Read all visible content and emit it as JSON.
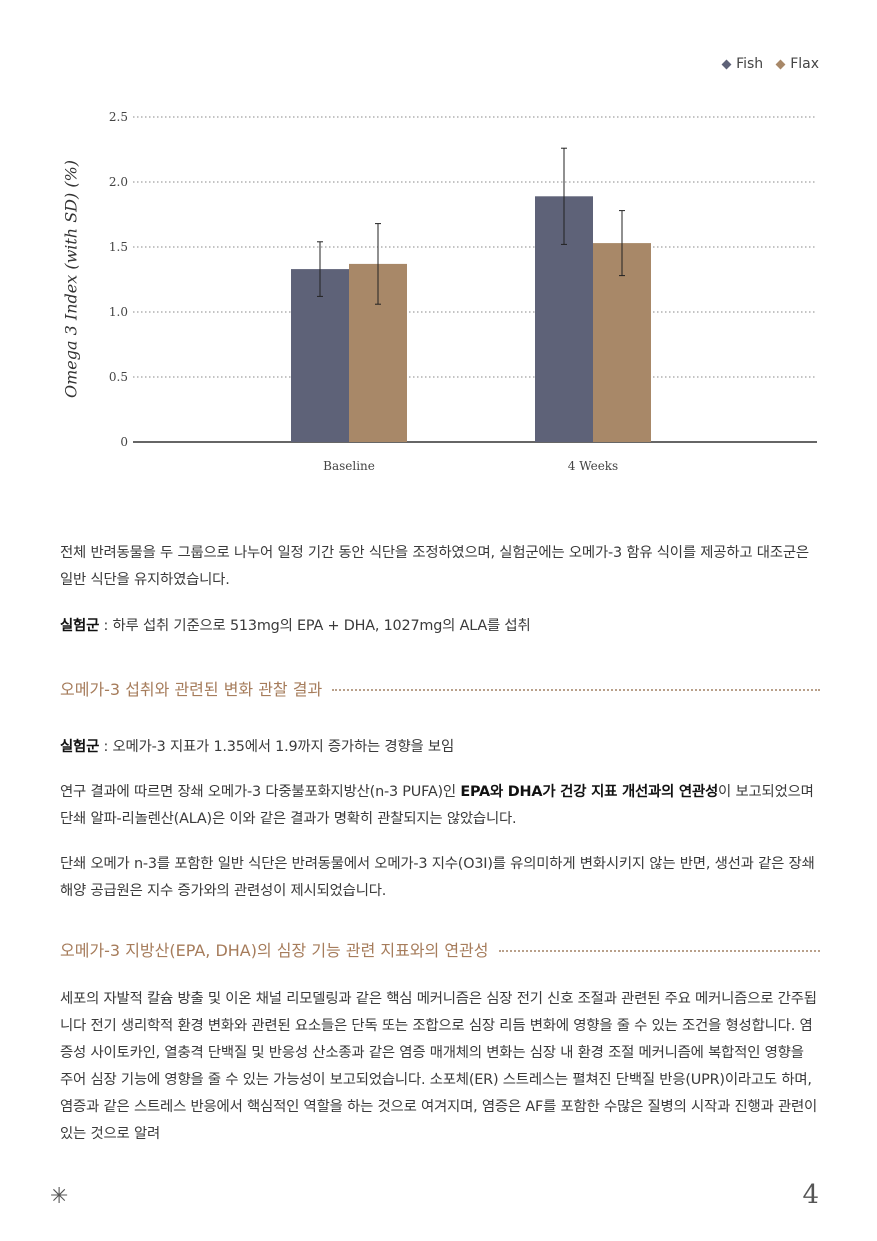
{
  "legend": [
    {
      "label": "Fish",
      "color": "#5e6278"
    },
    {
      "label": "Flax",
      "color": "#a88868"
    }
  ],
  "chart_data": {
    "type": "bar",
    "ylabel": "Omega 3 Index (with SD) (%)",
    "xlabel": "",
    "categories": [
      "Baseline",
      "4 Weeks"
    ],
    "series": [
      {
        "name": "Fish",
        "color": "#5e6278",
        "values": [
          1.33,
          1.89
        ],
        "sd": [
          0.21,
          0.37
        ]
      },
      {
        "name": "Flax",
        "color": "#a88868",
        "values": [
          1.37,
          1.53
        ],
        "sd": [
          0.31,
          0.25
        ]
      }
    ],
    "ylim": [
      0,
      2.5
    ],
    "yticks": [
      "0",
      "0.5",
      "1.0",
      "1.5",
      "2.0",
      "2.5"
    ],
    "grid": true,
    "legend_position": "top-right"
  },
  "para1": "전체 반려동물을 두 그룹으로 나누어 일정 기간 동안 식단을 조정하였으며, 실험군에는 오메가-3 함유 식이를 제공하고 대조군은 일반 식단을 유지하였습니다.",
  "para2": {
    "label": "실험군",
    "text": " : 하루 섭취 기준으로 513mg의 EPA + DHA, 1027mg의 ALA를 섭취"
  },
  "heading1": "오메가-3 섭취와 관련된 변화 관찰 결과",
  "para3": {
    "label": "실험군",
    "text": " : 오메가-3 지표가 1.35에서 1.9까지 증가하는 경향을 보임"
  },
  "para4": {
    "pre": "연구 결과에 따르면 장쇄 오메가-3 다중불포화지방산(n-3 PUFA)인 ",
    "bold": "EPA와 DHA가 건강 지표 개선과의 연관성",
    "post": "이 보고되었으며 단쇄 알파-리놀렌산(ALA)은 이와 같은 결과가 명확히 관찰되지는 않았습니다."
  },
  "para5": "단쇄 오메가 n-3를 포함한 일반 식단은 반려동물에서 오메가-3 지수(O3I)를 유의미하게 변화시키지 않는 반면, 생선과 같은 장쇄 해양 공급원은 지수 증가와의 관련성이 제시되었습니다.",
  "heading2": "오메가-3 지방산(EPA, DHA)의 심장 기능 관련 지표와의 연관성",
  "para6": "세포의 자발적 칼슘 방출 및 이온 채널 리모델링과 같은 핵심 메커니즘은 심장 전기 신호 조절과 관련된 주요 메커니즘으로 간주됩니다 전기 생리학적 환경 변화와 관련된 요소들은 단독 또는 조합으로 심장 리듬 변화에 영향을 줄 수 있는 조건을 형성합니다. 염증성 사이토카인, 열충격 단백질 및 반응성 산소종과 같은 염증 매개체의 변화는 심장 내 환경 조절 메커니즘에 복합적인 영향을 주어 심장 기능에 영향을 줄 수 있는 가능성이 보고되었습니다. 소포체(ER) 스트레스는 펼쳐진 단백질 반응(UPR)이라고도 하며, 염증과 같은 스트레스 반응에서 핵심적인 역할을 하는 것으로 여겨지며, 염증은 AF를 포함한 수많은 질병의 시작과 진행과 관련이 있는 것으로 알려",
  "footer": {
    "star": "✳",
    "page": "4"
  }
}
